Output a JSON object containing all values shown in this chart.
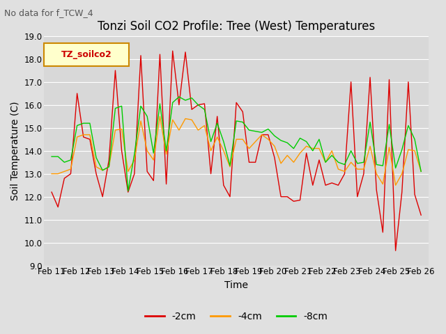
{
  "title": "Tonzi Soil CO2 Profile: Tree (West) Temperatures",
  "no_data_label": "No data for f_TCW_4",
  "ylabel": "Soil Temperature (C)",
  "xlabel": "Time",
  "ylim": [
    9.0,
    19.0
  ],
  "yticks": [
    9.0,
    10.0,
    11.0,
    12.0,
    13.0,
    14.0,
    15.0,
    16.0,
    17.0,
    18.0,
    19.0
  ],
  "x_labels": [
    "Feb 11",
    "Feb 12",
    "Feb 13",
    "Feb 14",
    "Feb 15",
    "Feb 16",
    "Feb 17",
    "Feb 18",
    "Feb 19",
    "Feb 20",
    "Feb 21",
    "Feb 22",
    "Feb 23",
    "Feb 24",
    "Feb 25",
    "Feb 26"
  ],
  "legend_label": "TZ_soilco2",
  "series": {
    "-2cm": {
      "color": "#dd0000",
      "values": [
        12.2,
        11.55,
        12.8,
        13.0,
        16.5,
        14.6,
        14.5,
        13.0,
        12.0,
        13.6,
        17.5,
        14.0,
        12.2,
        13.0,
        18.15,
        13.1,
        12.7,
        18.2,
        12.55,
        18.35,
        16.0,
        18.3,
        15.8,
        16.0,
        16.05,
        13.0,
        15.5,
        12.5,
        12.0,
        16.1,
        15.7,
        13.5,
        13.5,
        14.7,
        14.7,
        13.7,
        12.0,
        12.0,
        11.8,
        11.85,
        13.9,
        12.5,
        13.6,
        12.5,
        12.6,
        12.5,
        13.0,
        17.0,
        12.0,
        13.0,
        17.2,
        12.3,
        10.45,
        17.1,
        9.65,
        12.2,
        17.0,
        12.1,
        11.2
      ]
    },
    "-4cm": {
      "color": "#ff9900",
      "values": [
        13.0,
        13.0,
        13.1,
        13.2,
        14.6,
        14.7,
        14.7,
        13.3,
        13.15,
        13.3,
        14.9,
        14.95,
        13.1,
        13.6,
        15.3,
        14.0,
        13.6,
        15.5,
        13.85,
        15.35,
        14.9,
        15.4,
        15.35,
        14.9,
        15.1,
        14.0,
        14.6,
        14.0,
        13.3,
        14.5,
        14.5,
        14.1,
        14.4,
        14.7,
        14.5,
        14.2,
        13.45,
        13.8,
        13.5,
        13.9,
        14.2,
        14.1,
        14.1,
        13.5,
        14.0,
        13.2,
        13.1,
        13.5,
        13.2,
        13.2,
        14.2,
        13.0,
        12.55,
        14.15,
        12.5,
        13.0,
        14.05,
        14.0,
        13.1
      ]
    },
    "-8cm": {
      "color": "#00cc00",
      "values": [
        13.75,
        13.75,
        13.5,
        13.6,
        15.1,
        15.2,
        15.2,
        13.7,
        13.15,
        13.3,
        15.85,
        15.95,
        12.25,
        13.85,
        15.95,
        15.5,
        13.9,
        16.05,
        14.0,
        16.1,
        16.35,
        16.2,
        16.3,
        16.0,
        15.8,
        14.4,
        15.2,
        14.4,
        13.35,
        15.3,
        15.25,
        14.9,
        14.85,
        14.8,
        14.95,
        14.65,
        14.45,
        14.35,
        14.1,
        14.55,
        14.4,
        14.0,
        14.5,
        13.5,
        13.8,
        13.5,
        13.4,
        14.0,
        13.45,
        13.5,
        15.25,
        13.4,
        13.35,
        15.15,
        13.25,
        14.05,
        15.1,
        14.5,
        13.1
      ]
    }
  },
  "bg_color": "#e0e0e0",
  "plot_bg": "#d8d8d8",
  "grid_color": "#ffffff",
  "title_fontsize": 12,
  "label_fontsize": 10,
  "tick_fontsize": 8.5
}
